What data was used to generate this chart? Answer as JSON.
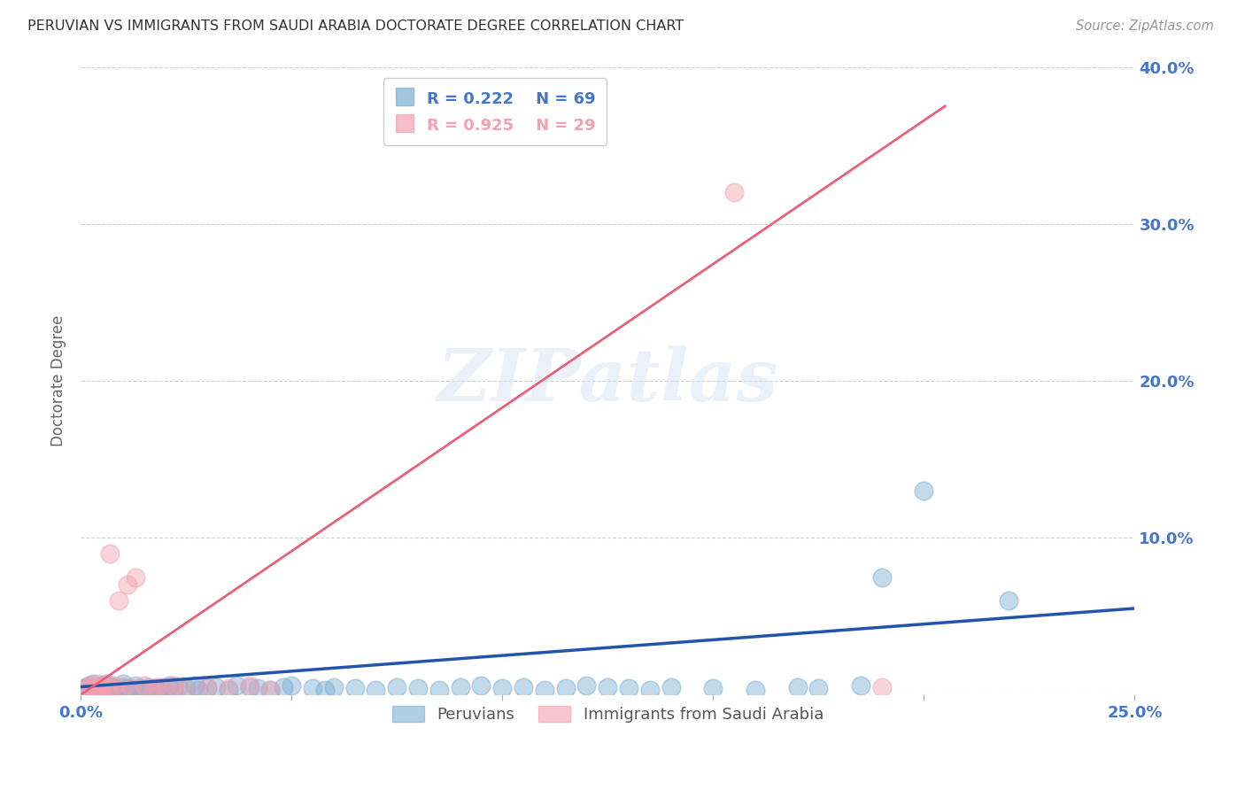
{
  "title": "PERUVIAN VS IMMIGRANTS FROM SAUDI ARABIA DOCTORATE DEGREE CORRELATION CHART",
  "source": "Source: ZipAtlas.com",
  "ylabel": "Doctorate Degree",
  "xlim": [
    0.0,
    0.25
  ],
  "ylim": [
    0.0,
    0.4
  ],
  "blue_color": "#7bafd4",
  "pink_color": "#f4a0b0",
  "blue_line_color": "#2255aa",
  "pink_line_color": "#e8607a",
  "axis_label_color": "#4477cc",
  "legend_R1": "R = 0.222",
  "legend_N1": "N = 69",
  "legend_R2": "R = 0.925",
  "legend_N2": "N = 29",
  "watermark_text": "ZIPatlas",
  "peruvians_x": [
    0.001,
    0.002,
    0.002,
    0.003,
    0.003,
    0.004,
    0.004,
    0.005,
    0.005,
    0.006,
    0.006,
    0.007,
    0.007,
    0.008,
    0.009,
    0.01,
    0.01,
    0.011,
    0.012,
    0.013,
    0.014,
    0.015,
    0.016,
    0.017,
    0.018,
    0.019,
    0.02,
    0.021,
    0.022,
    0.023,
    0.025,
    0.027,
    0.028,
    0.03,
    0.032,
    0.035,
    0.037,
    0.04,
    0.042,
    0.045,
    0.048,
    0.05,
    0.055,
    0.058,
    0.06,
    0.065,
    0.07,
    0.075,
    0.08,
    0.085,
    0.09,
    0.095,
    0.1,
    0.105,
    0.11,
    0.115,
    0.12,
    0.125,
    0.13,
    0.135,
    0.14,
    0.15,
    0.16,
    0.17,
    0.175,
    0.185,
    0.19,
    0.2,
    0.22
  ],
  "peruvians_y": [
    0.005,
    0.003,
    0.006,
    0.004,
    0.007,
    0.005,
    0.003,
    0.006,
    0.004,
    0.007,
    0.003,
    0.005,
    0.006,
    0.004,
    0.003,
    0.005,
    0.007,
    0.004,
    0.003,
    0.006,
    0.004,
    0.003,
    0.005,
    0.004,
    0.003,
    0.005,
    0.004,
    0.006,
    0.003,
    0.005,
    0.004,
    0.006,
    0.003,
    0.004,
    0.005,
    0.003,
    0.006,
    0.005,
    0.004,
    0.003,
    0.005,
    0.006,
    0.004,
    0.003,
    0.005,
    0.004,
    0.003,
    0.005,
    0.004,
    0.003,
    0.005,
    0.006,
    0.004,
    0.005,
    0.003,
    0.004,
    0.006,
    0.005,
    0.004,
    0.003,
    0.005,
    0.004,
    0.003,
    0.005,
    0.004,
    0.006,
    0.075,
    0.13,
    0.06
  ],
  "saudi_x": [
    0.001,
    0.002,
    0.002,
    0.003,
    0.004,
    0.004,
    0.005,
    0.005,
    0.006,
    0.007,
    0.007,
    0.008,
    0.009,
    0.01,
    0.011,
    0.012,
    0.013,
    0.015,
    0.017,
    0.018,
    0.02,
    0.022,
    0.025,
    0.03,
    0.035,
    0.04,
    0.045,
    0.155,
    0.19
  ],
  "saudi_y": [
    0.004,
    0.006,
    0.003,
    0.005,
    0.007,
    0.004,
    0.006,
    0.003,
    0.005,
    0.004,
    0.09,
    0.006,
    0.06,
    0.005,
    0.07,
    0.004,
    0.075,
    0.006,
    0.003,
    0.005,
    0.004,
    0.006,
    0.003,
    0.005,
    0.004,
    0.006,
    0.003,
    0.32,
    0.005
  ],
  "blue_trend_x": [
    0.0,
    0.25
  ],
  "blue_trend_y": [
    0.005,
    0.055
  ],
  "pink_trend_x": [
    0.0,
    0.205
  ],
  "pink_trend_y": [
    0.0,
    0.375
  ]
}
